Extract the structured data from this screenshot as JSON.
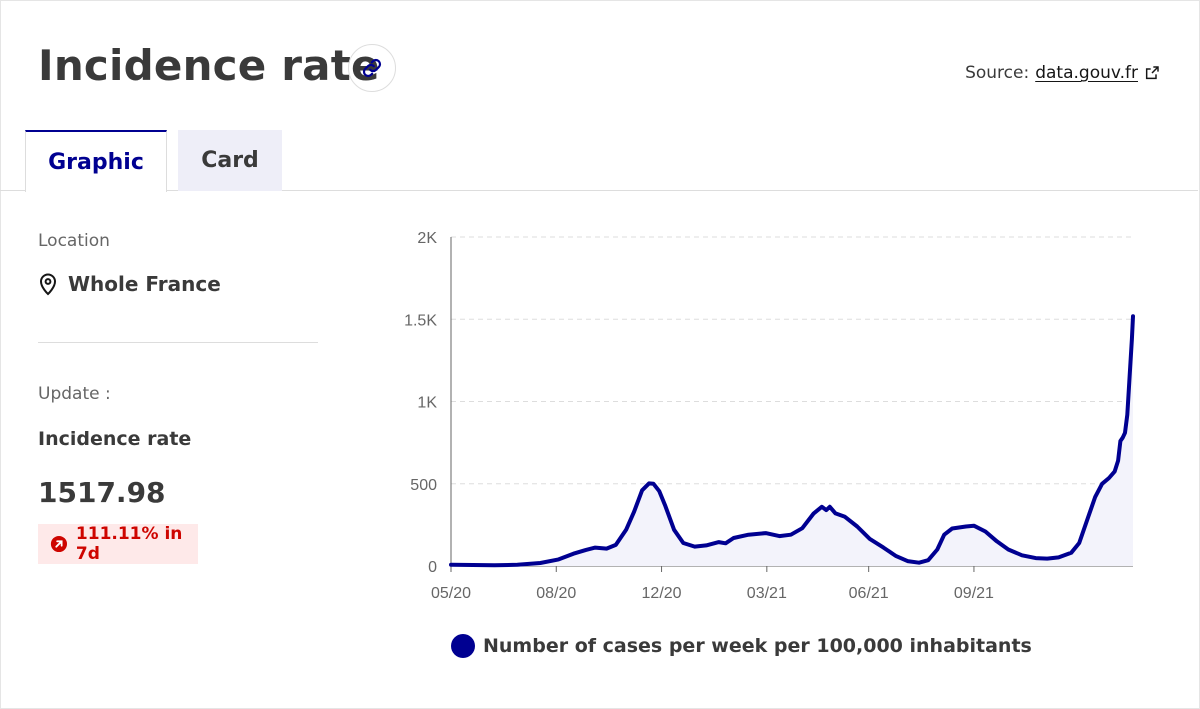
{
  "header": {
    "title": "Incidence rate",
    "source_label": "Source:",
    "source_link": "data.gouv.fr"
  },
  "tabs": [
    {
      "label": "Graphic",
      "active": true
    },
    {
      "label": "Card",
      "active": false
    }
  ],
  "sidebar": {
    "location_label": "Location",
    "location_value": "Whole France",
    "update_label": "Update :",
    "metric_name": "Incidence rate",
    "metric_value": "1517.98",
    "change_badge": "111.11% in 7d"
  },
  "icons": {
    "link": "link-icon",
    "external": "external-link-icon",
    "location": "location-pin-icon",
    "trend": "arrow-up-right-icon"
  },
  "colors": {
    "accent": "#000091",
    "badge_bg": "#fee9e9",
    "badge_text": "#ce0500"
  },
  "chart_data": {
    "type": "area",
    "title": "",
    "xlabel": "",
    "ylabel": "",
    "ylim": [
      0,
      2000
    ],
    "xlim": [
      "2020-05-13",
      "2021-12-30"
    ],
    "grid": true,
    "legend_position": "bottom",
    "y_ticks": [
      0,
      500,
      1000,
      1500,
      2000
    ],
    "y_tick_labels": [
      "0",
      "500",
      "1K",
      "1.5K",
      "2K"
    ],
    "x_ticks": [
      "2020-05-13",
      "2020-08-13",
      "2020-11-13",
      "2021-02-13",
      "2021-05-13",
      "2021-08-13"
    ],
    "x_tick_labels": [
      "05/20",
      "08/20",
      "12/20",
      "03/21",
      "06/21",
      "09/21"
    ],
    "series": [
      {
        "name": "Number of cases per week per 100,000 inhabitants",
        "color": "#000091",
        "points": [
          [
            "2020-05-13",
            8
          ],
          [
            "2020-06-01",
            6
          ],
          [
            "2020-06-20",
            5
          ],
          [
            "2020-07-10",
            7
          ],
          [
            "2020-07-30",
            18
          ],
          [
            "2020-08-15",
            40
          ],
          [
            "2020-08-28",
            75
          ],
          [
            "2020-09-08",
            98
          ],
          [
            "2020-09-16",
            112
          ],
          [
            "2020-09-26",
            106
          ],
          [
            "2020-10-04",
            128
          ],
          [
            "2020-10-13",
            220
          ],
          [
            "2020-10-20",
            330
          ],
          [
            "2020-10-27",
            460
          ],
          [
            "2020-11-02",
            502
          ],
          [
            "2020-11-06",
            500
          ],
          [
            "2020-11-11",
            455
          ],
          [
            "2020-11-16",
            370
          ],
          [
            "2020-11-24",
            220
          ],
          [
            "2020-12-02",
            140
          ],
          [
            "2020-12-12",
            118
          ],
          [
            "2020-12-22",
            125
          ],
          [
            "2021-01-02",
            145
          ],
          [
            "2021-01-08",
            138
          ],
          [
            "2021-01-15",
            170
          ],
          [
            "2021-01-28",
            190
          ],
          [
            "2021-02-12",
            200
          ],
          [
            "2021-02-24",
            182
          ],
          [
            "2021-03-06",
            190
          ],
          [
            "2021-03-16",
            230
          ],
          [
            "2021-03-26",
            320
          ],
          [
            "2021-04-02",
            360
          ],
          [
            "2021-04-06",
            340
          ],
          [
            "2021-04-09",
            360
          ],
          [
            "2021-04-14",
            320
          ],
          [
            "2021-04-22",
            300
          ],
          [
            "2021-05-03",
            240
          ],
          [
            "2021-05-14",
            165
          ],
          [
            "2021-05-26",
            112
          ],
          [
            "2021-06-06",
            60
          ],
          [
            "2021-06-16",
            30
          ],
          [
            "2021-06-26",
            20
          ],
          [
            "2021-07-04",
            35
          ],
          [
            "2021-07-12",
            100
          ],
          [
            "2021-07-18",
            190
          ],
          [
            "2021-07-25",
            228
          ],
          [
            "2021-08-06",
            240
          ],
          [
            "2021-08-13",
            245
          ],
          [
            "2021-08-23",
            210
          ],
          [
            "2021-09-02",
            150
          ],
          [
            "2021-09-12",
            100
          ],
          [
            "2021-09-24",
            65
          ],
          [
            "2021-10-06",
            48
          ],
          [
            "2021-10-16",
            45
          ],
          [
            "2021-10-26",
            52
          ],
          [
            "2021-11-06",
            80
          ],
          [
            "2021-11-13",
            140
          ],
          [
            "2021-11-20",
            280
          ],
          [
            "2021-11-27",
            420
          ],
          [
            "2021-12-03",
            500
          ],
          [
            "2021-12-09",
            535
          ],
          [
            "2021-12-14",
            575
          ],
          [
            "2021-12-17",
            640
          ],
          [
            "2021-12-19",
            760
          ],
          [
            "2021-12-21",
            780
          ],
          [
            "2021-12-23",
            810
          ],
          [
            "2021-12-25",
            920
          ],
          [
            "2021-12-27",
            1150
          ],
          [
            "2021-12-29",
            1380
          ],
          [
            "2021-12-30",
            1517.98
          ]
        ]
      }
    ]
  }
}
